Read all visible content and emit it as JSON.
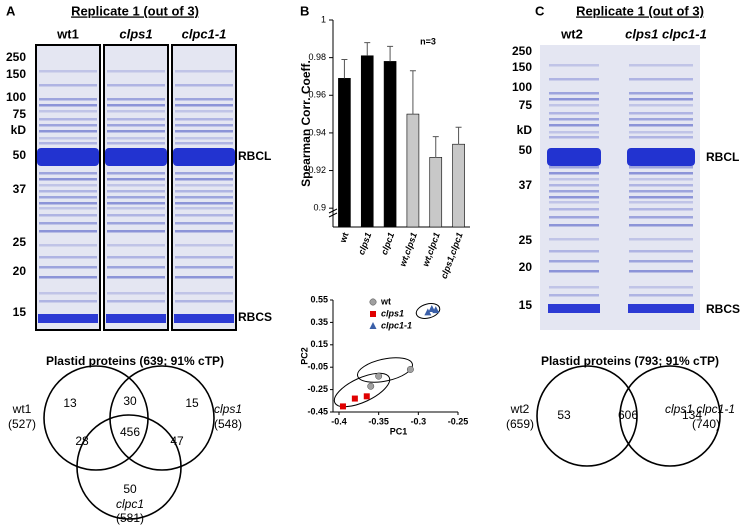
{
  "panels": {
    "a": {
      "label": "A",
      "title": "Replicate 1 (out of 3)",
      "lanes": [
        "wt1",
        "clps1",
        "clpc1-1"
      ],
      "markers": [
        "250",
        "150",
        "100",
        "75",
        "kD",
        "50",
        "37",
        "25",
        "20",
        "15"
      ],
      "bands": [
        "RBCL",
        "RBCS"
      ],
      "venn": {
        "title": "Plastid proteins (639; 91% cTP)",
        "regions": [
          13,
          30,
          15,
          28,
          456,
          47,
          50
        ],
        "sets": [
          {
            "name": "wt1",
            "count": "(527)"
          },
          {
            "name": "clps1",
            "count": "(548)"
          },
          {
            "name": "clpc1",
            "count": "(581)"
          }
        ]
      }
    },
    "b": {
      "label": "B"
    },
    "c": {
      "label": "C",
      "title": "Replicate 1 (out of 3)",
      "lanes": [
        "wt2",
        "clps1 clpc1-1"
      ],
      "markers": [
        "250",
        "150",
        "100",
        "75",
        "kD",
        "50",
        "37",
        "25",
        "20",
        "15"
      ],
      "bands": [
        "RBCL",
        "RBCS"
      ],
      "venn": {
        "title": "Plastid proteins (793; 91% cTP)",
        "regions": [
          53,
          606,
          134
        ],
        "sets": [
          {
            "name": "wt2",
            "count": "(659)"
          },
          {
            "name": "clps1 clpc1-1",
            "count": "(740)"
          }
        ]
      }
    }
  },
  "chart_data": [
    {
      "type": "bar",
      "y_label": "Spearman Corr. Coeff.",
      "annotation": "n=3",
      "categories": [
        "wt",
        "clps1",
        "clpc1",
        "wt,clps1",
        "wt,clpc1",
        "clps1,clpc1"
      ],
      "values": [
        0.969,
        0.981,
        0.978,
        0.95,
        0.927,
        0.934
      ],
      "errors": [
        0.01,
        0.007,
        0.008,
        0.023,
        0.011,
        0.009
      ],
      "colors": [
        "#000000",
        "#000000",
        "#000000",
        "#c8c8c8",
        "#c8c8c8",
        "#c8c8c8"
      ],
      "ylim": [
        0.89,
        1
      ],
      "yticks": [
        0.9,
        0.92,
        0.94,
        0.96,
        0.98,
        1
      ]
    },
    {
      "type": "scatter",
      "x_label": "PC1",
      "y_label": "PC2",
      "series": [
        {
          "name": "wt",
          "color": "#a0a0a0",
          "marker": "circle",
          "x": [
            -0.36,
            -0.35,
            -0.31
          ],
          "values": [
            -0.22,
            -0.13,
            -0.07
          ]
        },
        {
          "name": "clps1",
          "color": "#e00000",
          "marker": "square",
          "x": [
            -0.395,
            -0.38,
            -0.365
          ],
          "values": [
            -0.4,
            -0.33,
            -0.31
          ]
        },
        {
          "name": "clpc1-1",
          "color": "#3a5fa8",
          "marker": "triangle",
          "x": [
            -0.288,
            -0.283,
            -0.278
          ],
          "values": [
            0.44,
            0.47,
            0.46
          ]
        }
      ],
      "xlim": [
        -0.4,
        -0.25
      ],
      "xticks": [
        -0.4,
        -0.35,
        -0.3,
        -0.25
      ],
      "ylim": [
        -0.45,
        0.55
      ],
      "yticks": [
        -0.45,
        -0.25,
        -0.05,
        0.15,
        0.35,
        0.55
      ]
    }
  ]
}
